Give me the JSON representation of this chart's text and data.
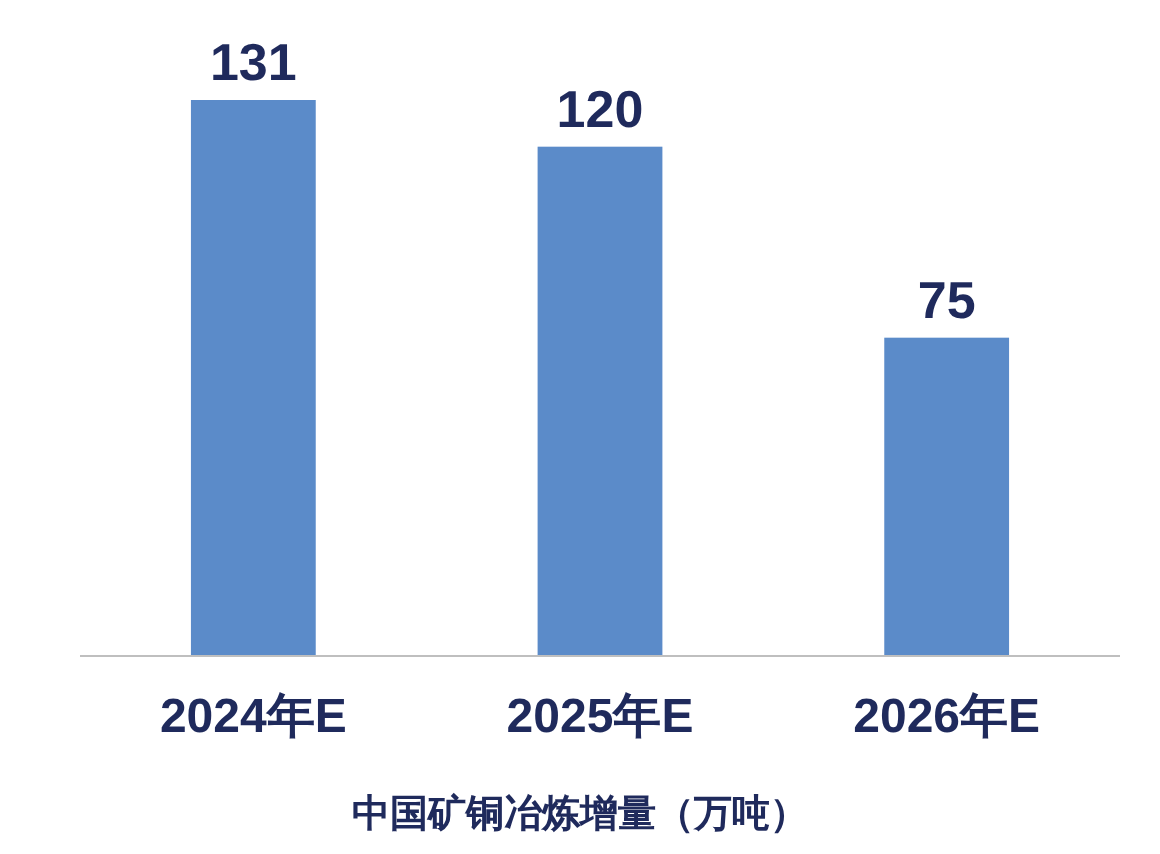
{
  "chart_data": {
    "type": "bar",
    "xlabel": "中国矿铜冶炼增量（万吨）",
    "categories": [
      "2024年E",
      "2025年E",
      "2026年E"
    ],
    "values": [
      131,
      120,
      75
    ],
    "color": "#5b8bc9",
    "data_labels": true
  }
}
